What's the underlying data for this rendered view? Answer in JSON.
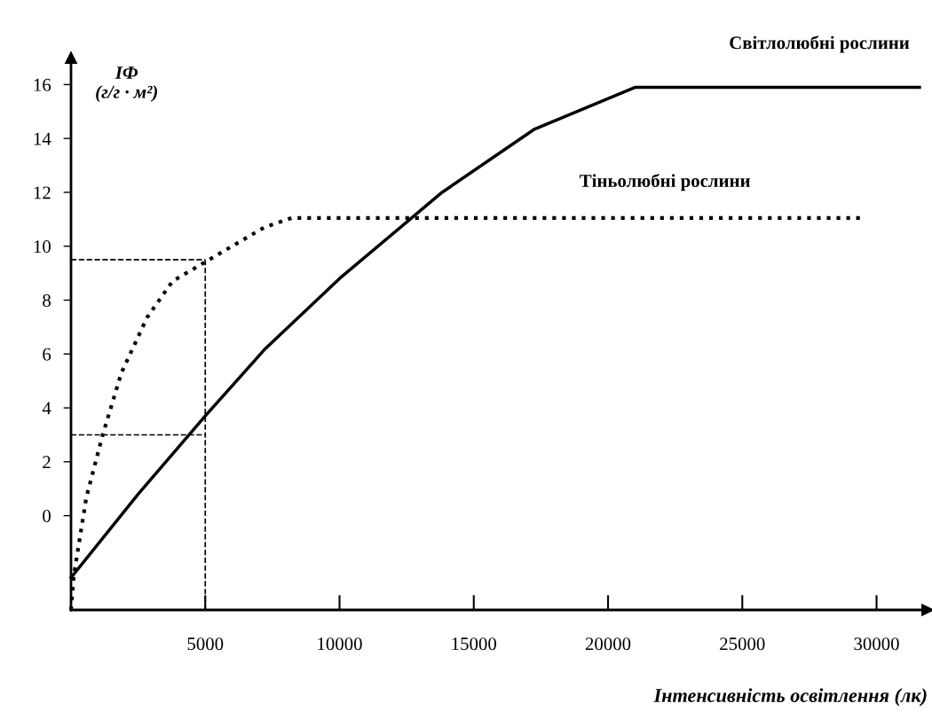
{
  "chart_data": {
    "type": "line",
    "xlabel": "Інтенсивність освітлення (лк)",
    "ylabel": "IФ\n(г/г · м²)",
    "xlim": [
      0,
      31900
    ],
    "ylim": [
      -3.5,
      17.0
    ],
    "xticks": [
      5000,
      10000,
      15000,
      20000,
      25000,
      30000
    ],
    "yticks": [
      0,
      2,
      4,
      6,
      8,
      10,
      12,
      14,
      16
    ],
    "grid": false,
    "legend": false,
    "marker": "none",
    "ref_lines": [
      {
        "axis": "x",
        "value": 5000,
        "label": null,
        "line_style": "dashed",
        "color": "#000000"
      },
      {
        "axis": "y",
        "value": 9.5,
        "label": null,
        "line_style": "dashed",
        "color": "#000000"
      },
      {
        "axis": "y",
        "value": 3.0,
        "label": null,
        "line_style": "dashed",
        "color": "#000000"
      }
    ],
    "series": [
      {
        "name": "Світлолюбні рослини",
        "color": "#000000",
        "line_style": "solid",
        "x": [
          0,
          2500,
          5000,
          7240,
          10000,
          13820,
          17270,
          21020,
          31600
        ],
        "values": [
          -2.3,
          0.8,
          3.7,
          6.2,
          8.8,
          12.0,
          14.35,
          15.9,
          15.9
        ]
      },
      {
        "name": "Тіньолюбні рослини",
        "color": "#000000",
        "line_style": "dotted",
        "x": [
          0,
          100,
          575,
          1180,
          1875,
          2830,
          3780,
          4970,
          7200,
          8220,
          29440
        ],
        "values": [
          -3.5,
          -2.25,
          0.7,
          3.0,
          5.3,
          7.35,
          8.7,
          9.4,
          10.7,
          11.05,
          11.05
        ]
      }
    ]
  }
}
